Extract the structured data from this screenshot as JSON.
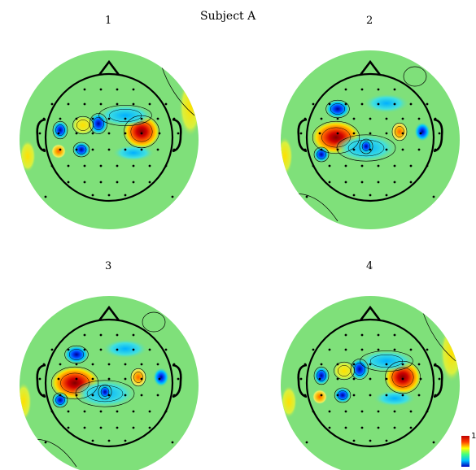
{
  "figure": {
    "title": "Subject A",
    "panels": [
      {
        "label": "1",
        "variant": "A"
      },
      {
        "label": "2",
        "variant": "B"
      },
      {
        "label": "3",
        "variant": "B"
      },
      {
        "label": "4",
        "variant": "A"
      }
    ],
    "colorbar": {
      "max_label": "1",
      "colors": [
        "#c00000",
        "#ff4000",
        "#ffff00",
        "#40ff80",
        "#00c0ff",
        "#0000c0"
      ]
    },
    "background_color": "#7fe07a"
  }
}
